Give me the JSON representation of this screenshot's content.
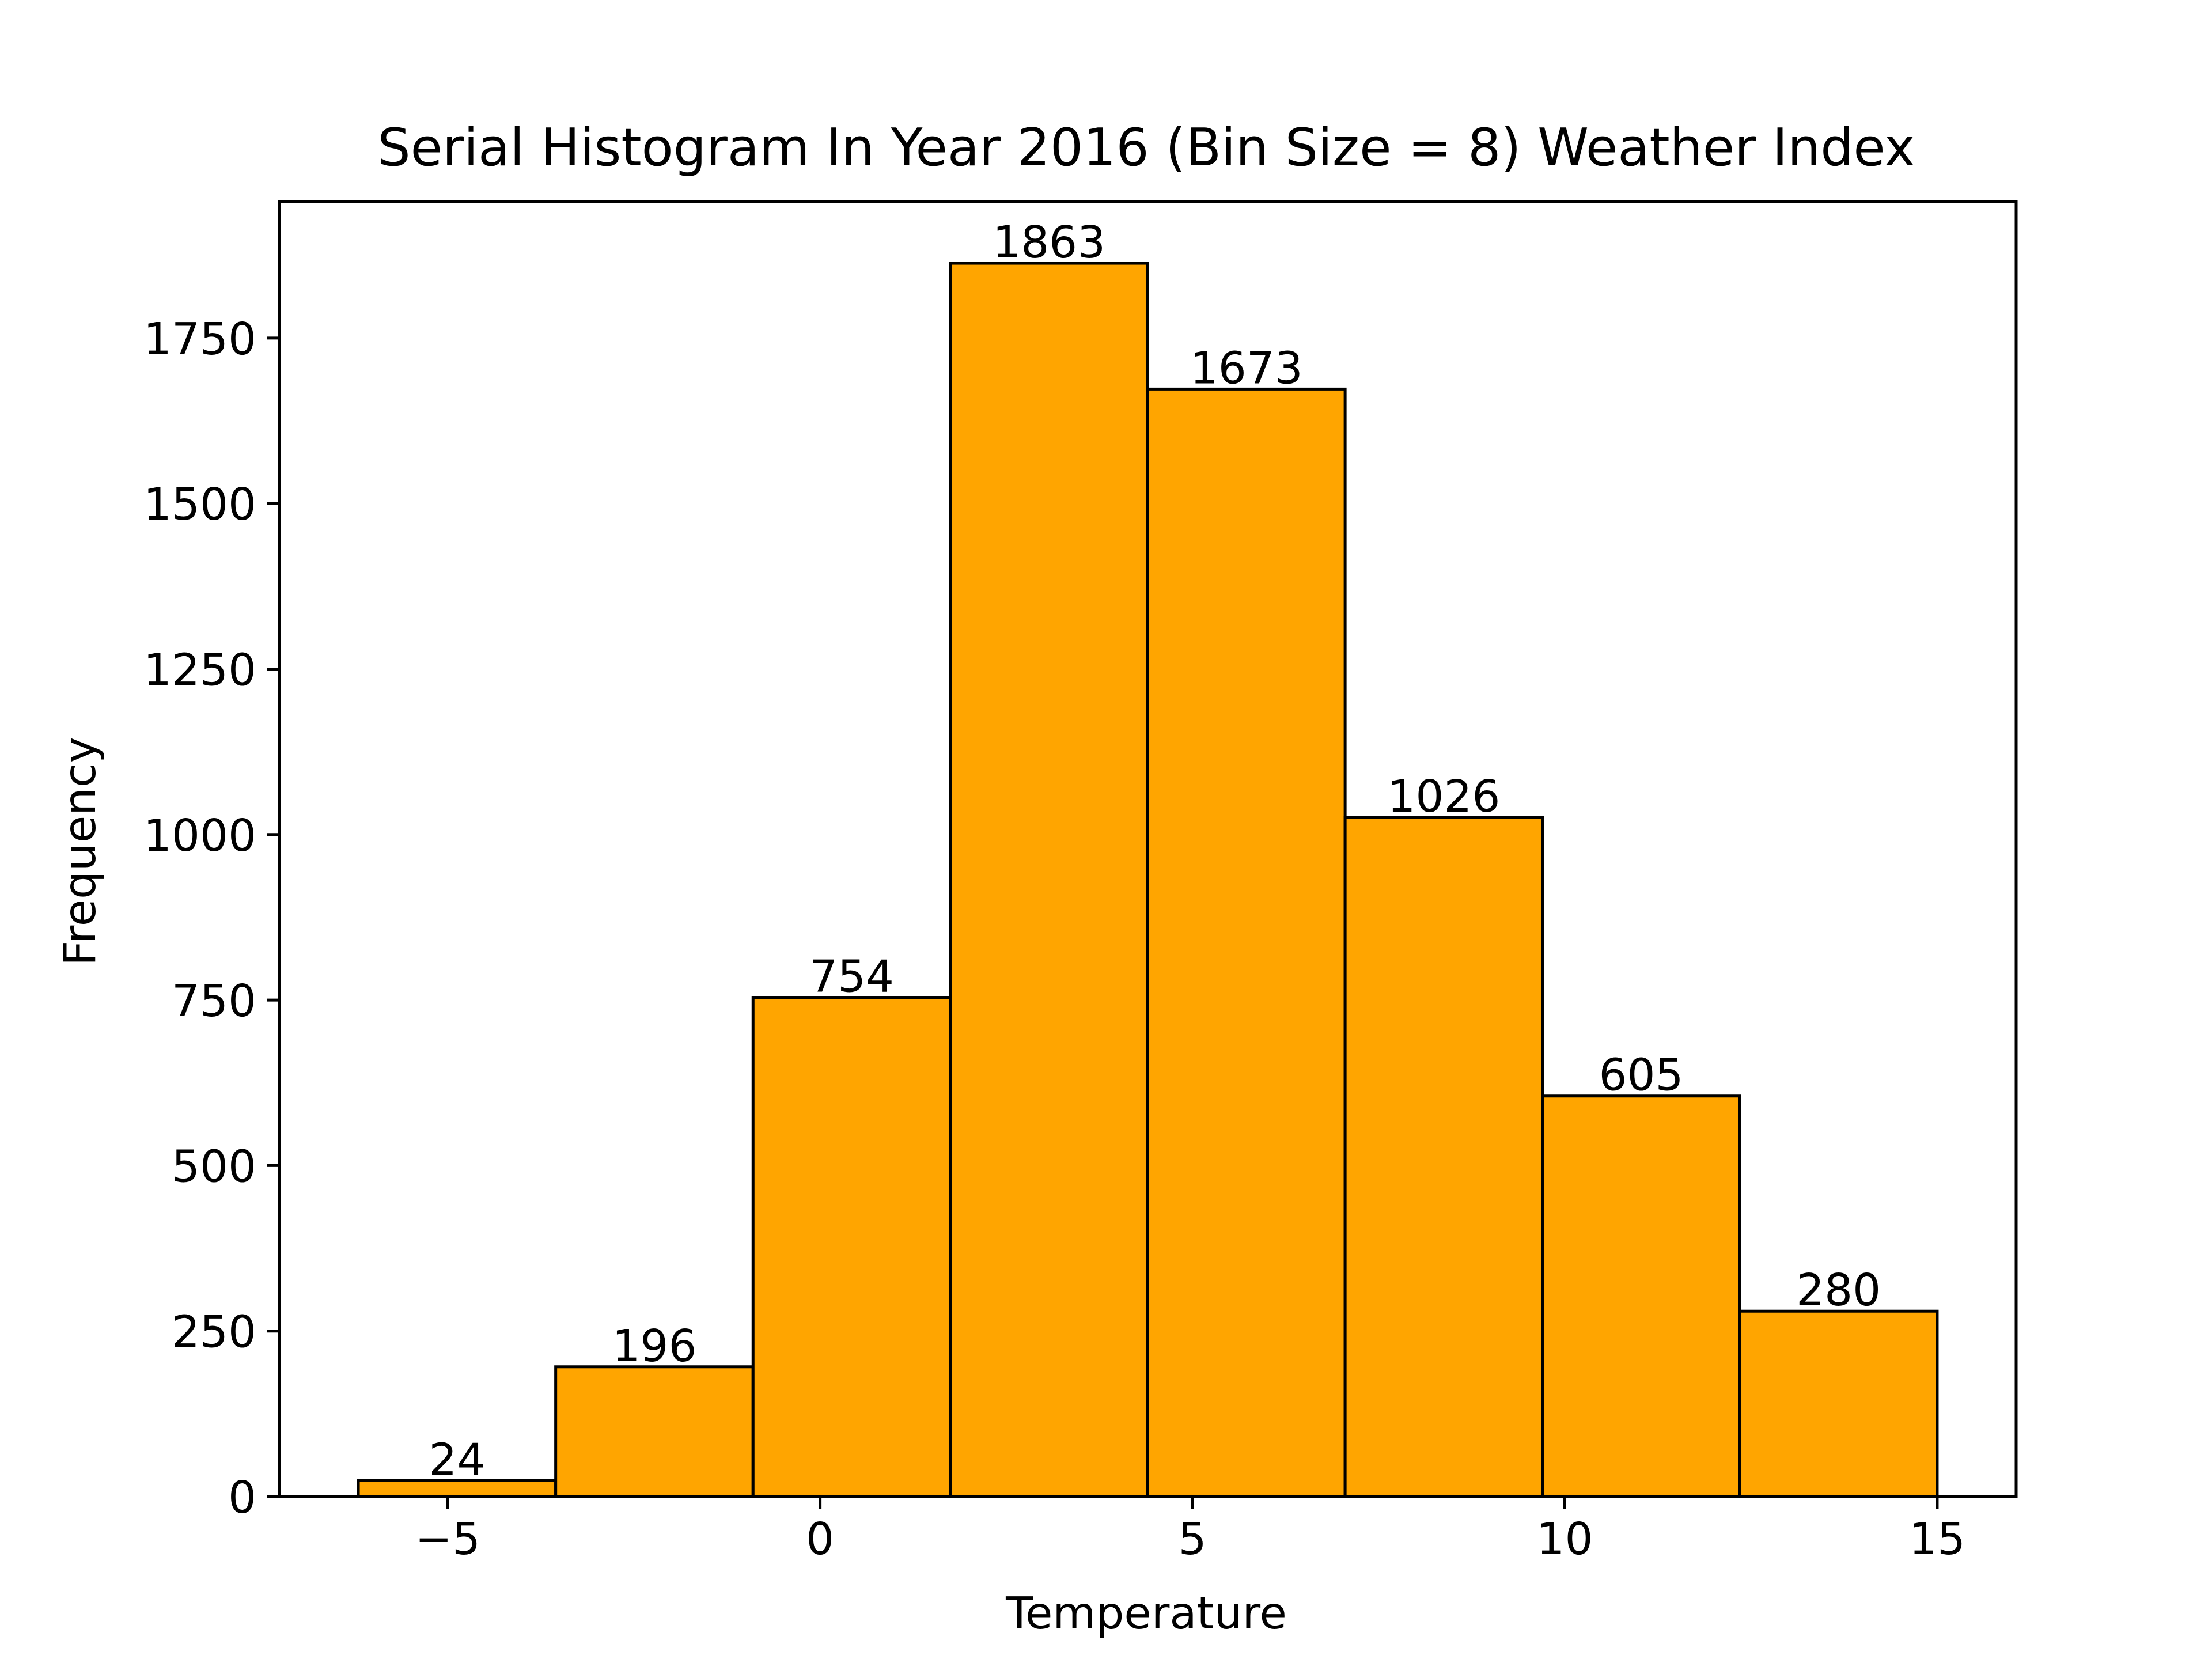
{
  "chart_data": {
    "type": "bar",
    "title": "Serial Histogram In Year 2016 (Bin Size = 8) Weather Index",
    "xlabel": "Temperature",
    "ylabel": "Frequency",
    "bin_edges": [
      -6.2,
      -3.55,
      -0.9,
      1.75,
      4.4,
      7.05,
      9.7,
      12.35,
      15.0
    ],
    "values": [
      24,
      196,
      754,
      1863,
      1673,
      1026,
      605,
      280
    ],
    "xlim": [
      -7.26,
      16.06
    ],
    "ylim": [
      0,
      1956.15
    ],
    "x_ticks": [
      -5,
      0,
      5,
      10,
      15
    ],
    "x_tick_labels": [
      "−5",
      "0",
      "5",
      "10",
      "15"
    ],
    "y_ticks": [
      0,
      250,
      500,
      750,
      1000,
      1250,
      1500,
      1750
    ],
    "y_tick_labels": [
      "0",
      "250",
      "500",
      "750",
      "1000",
      "1250",
      "1500",
      "1750"
    ],
    "bar_color": "#FFA500",
    "edge_color": "#000000",
    "grid": false,
    "legend": false
  }
}
